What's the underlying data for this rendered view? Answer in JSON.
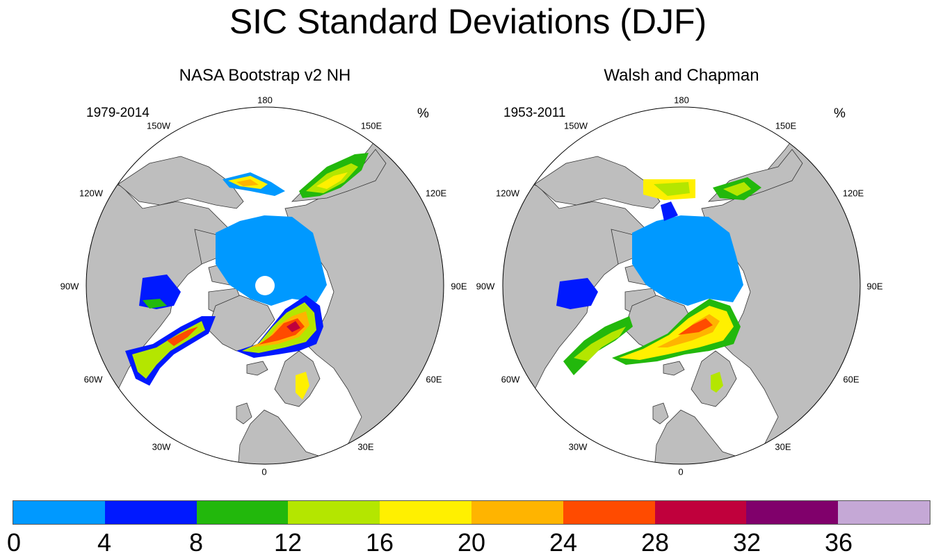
{
  "title": "SIC Standard Deviations (DJF)",
  "panels": [
    {
      "title": "NASA Bootstrap v2 NH",
      "period": "1979-2014",
      "unit": "%",
      "lon_labels": {
        "top": "180",
        "bottom": "0",
        "left": "90W",
        "right": "90E",
        "l150": "150W",
        "l120": "120W",
        "l60": "60W",
        "l30": "30W",
        "r150": "150E",
        "r120": "120E",
        "r60": "60E",
        "r30": "30E"
      }
    },
    {
      "title": "Walsh and Chapman",
      "period": "1953-2011",
      "unit": "%",
      "lon_labels": {
        "top": "180",
        "bottom": "0",
        "left": "90W",
        "right": "90E",
        "l150": "150W",
        "l120": "120W",
        "l60": "60W",
        "l30": "30W",
        "r150": "150E",
        "r120": "120E",
        "r60": "60E",
        "r30": "30E"
      }
    }
  ],
  "colorbar": {
    "colors": [
      "#0099ff",
      "#0019ff",
      "#22b80c",
      "#b4e600",
      "#fff000",
      "#ffb400",
      "#ff4b00",
      "#c0003c",
      "#80006b",
      "#c5a8d6"
    ],
    "labels": [
      "0",
      "4",
      "8",
      "12",
      "16",
      "20",
      "24",
      "28",
      "32",
      "36"
    ]
  },
  "map_colors": {
    "land": "#bebebe",
    "ocean": "#ffffff",
    "coast": "#333333"
  }
}
